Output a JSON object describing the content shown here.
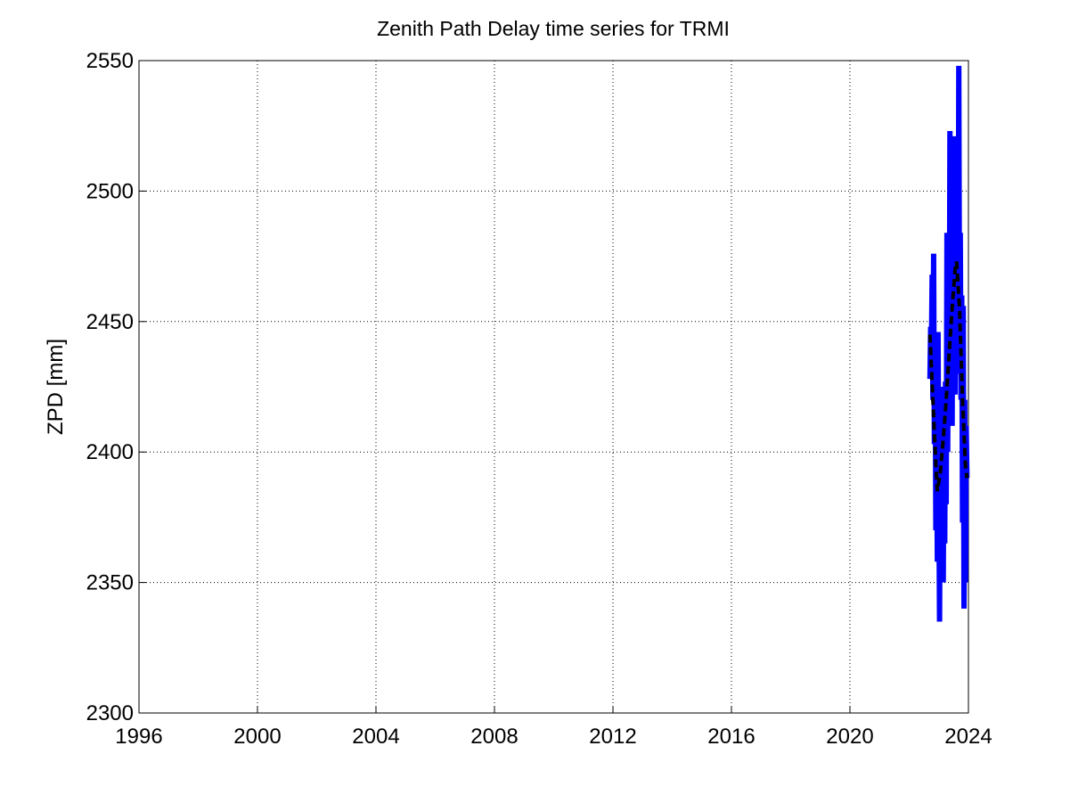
{
  "chart_data": {
    "type": "line",
    "title": "Zenith Path Delay time series for TRMI",
    "y_label": "ZPD [mm]",
    "xlim": [
      1996,
      2024
    ],
    "xticks": [
      1996,
      2000,
      2004,
      2008,
      2012,
      2016,
      2020,
      2024
    ],
    "ylim": [
      2300,
      2550
    ],
    "yticks": [
      2300,
      2350,
      2400,
      2450,
      2500,
      2550
    ],
    "grid": true,
    "series": [
      {
        "color": "#0000ff",
        "style": "solid",
        "x": [
          2022.7,
          2022.725,
          2022.75,
          2022.775,
          2022.8,
          2022.825,
          2022.85,
          2022.875,
          2022.9,
          2022.925,
          2022.95,
          2022.975,
          2023.0,
          2023.025,
          2023.05,
          2023.075,
          2023.1,
          2023.125,
          2023.15,
          2023.175,
          2023.2,
          2023.225,
          2023.25,
          2023.275,
          2023.3,
          2023.325,
          2023.35,
          2023.375,
          2023.4,
          2023.425,
          2023.45,
          2023.475,
          2023.5,
          2023.525,
          2023.55,
          2023.575,
          2023.6,
          2023.625,
          2023.65,
          2023.675,
          2023.7,
          2023.725,
          2023.75,
          2023.775,
          2023.8,
          2023.825,
          2023.85,
          2023.875,
          2023.9,
          2023.925,
          2023.95
        ],
        "values": [
          2428,
          2448,
          2440,
          2468,
          2420,
          2476,
          2403,
          2445,
          2370,
          2420,
          2358,
          2446,
          2385,
          2335,
          2400,
          2362,
          2425,
          2370,
          2350,
          2410,
          2365,
          2427,
          2380,
          2484,
          2400,
          2460,
          2410,
          2523,
          2430,
          2514,
          2410,
          2490,
          2440,
          2521,
          2422,
          2470,
          2448,
          2506,
          2430,
          2548,
          2440,
          2484,
          2420,
          2460,
          2373,
          2456,
          2340,
          2420,
          2350,
          2410,
          2390
        ]
      },
      {
        "color": "#000000",
        "style": "dashed",
        "x": [
          2022.7,
          2022.8,
          2022.9,
          2022.95,
          2023.05,
          2023.15,
          2023.25,
          2023.35,
          2023.45,
          2023.55,
          2023.6,
          2023.7,
          2023.8,
          2023.9,
          2023.95
        ],
        "values": [
          2445,
          2420,
          2395,
          2385,
          2392,
          2405,
          2420,
          2438,
          2455,
          2470,
          2473,
          2455,
          2420,
          2395,
          2390
        ]
      }
    ]
  }
}
